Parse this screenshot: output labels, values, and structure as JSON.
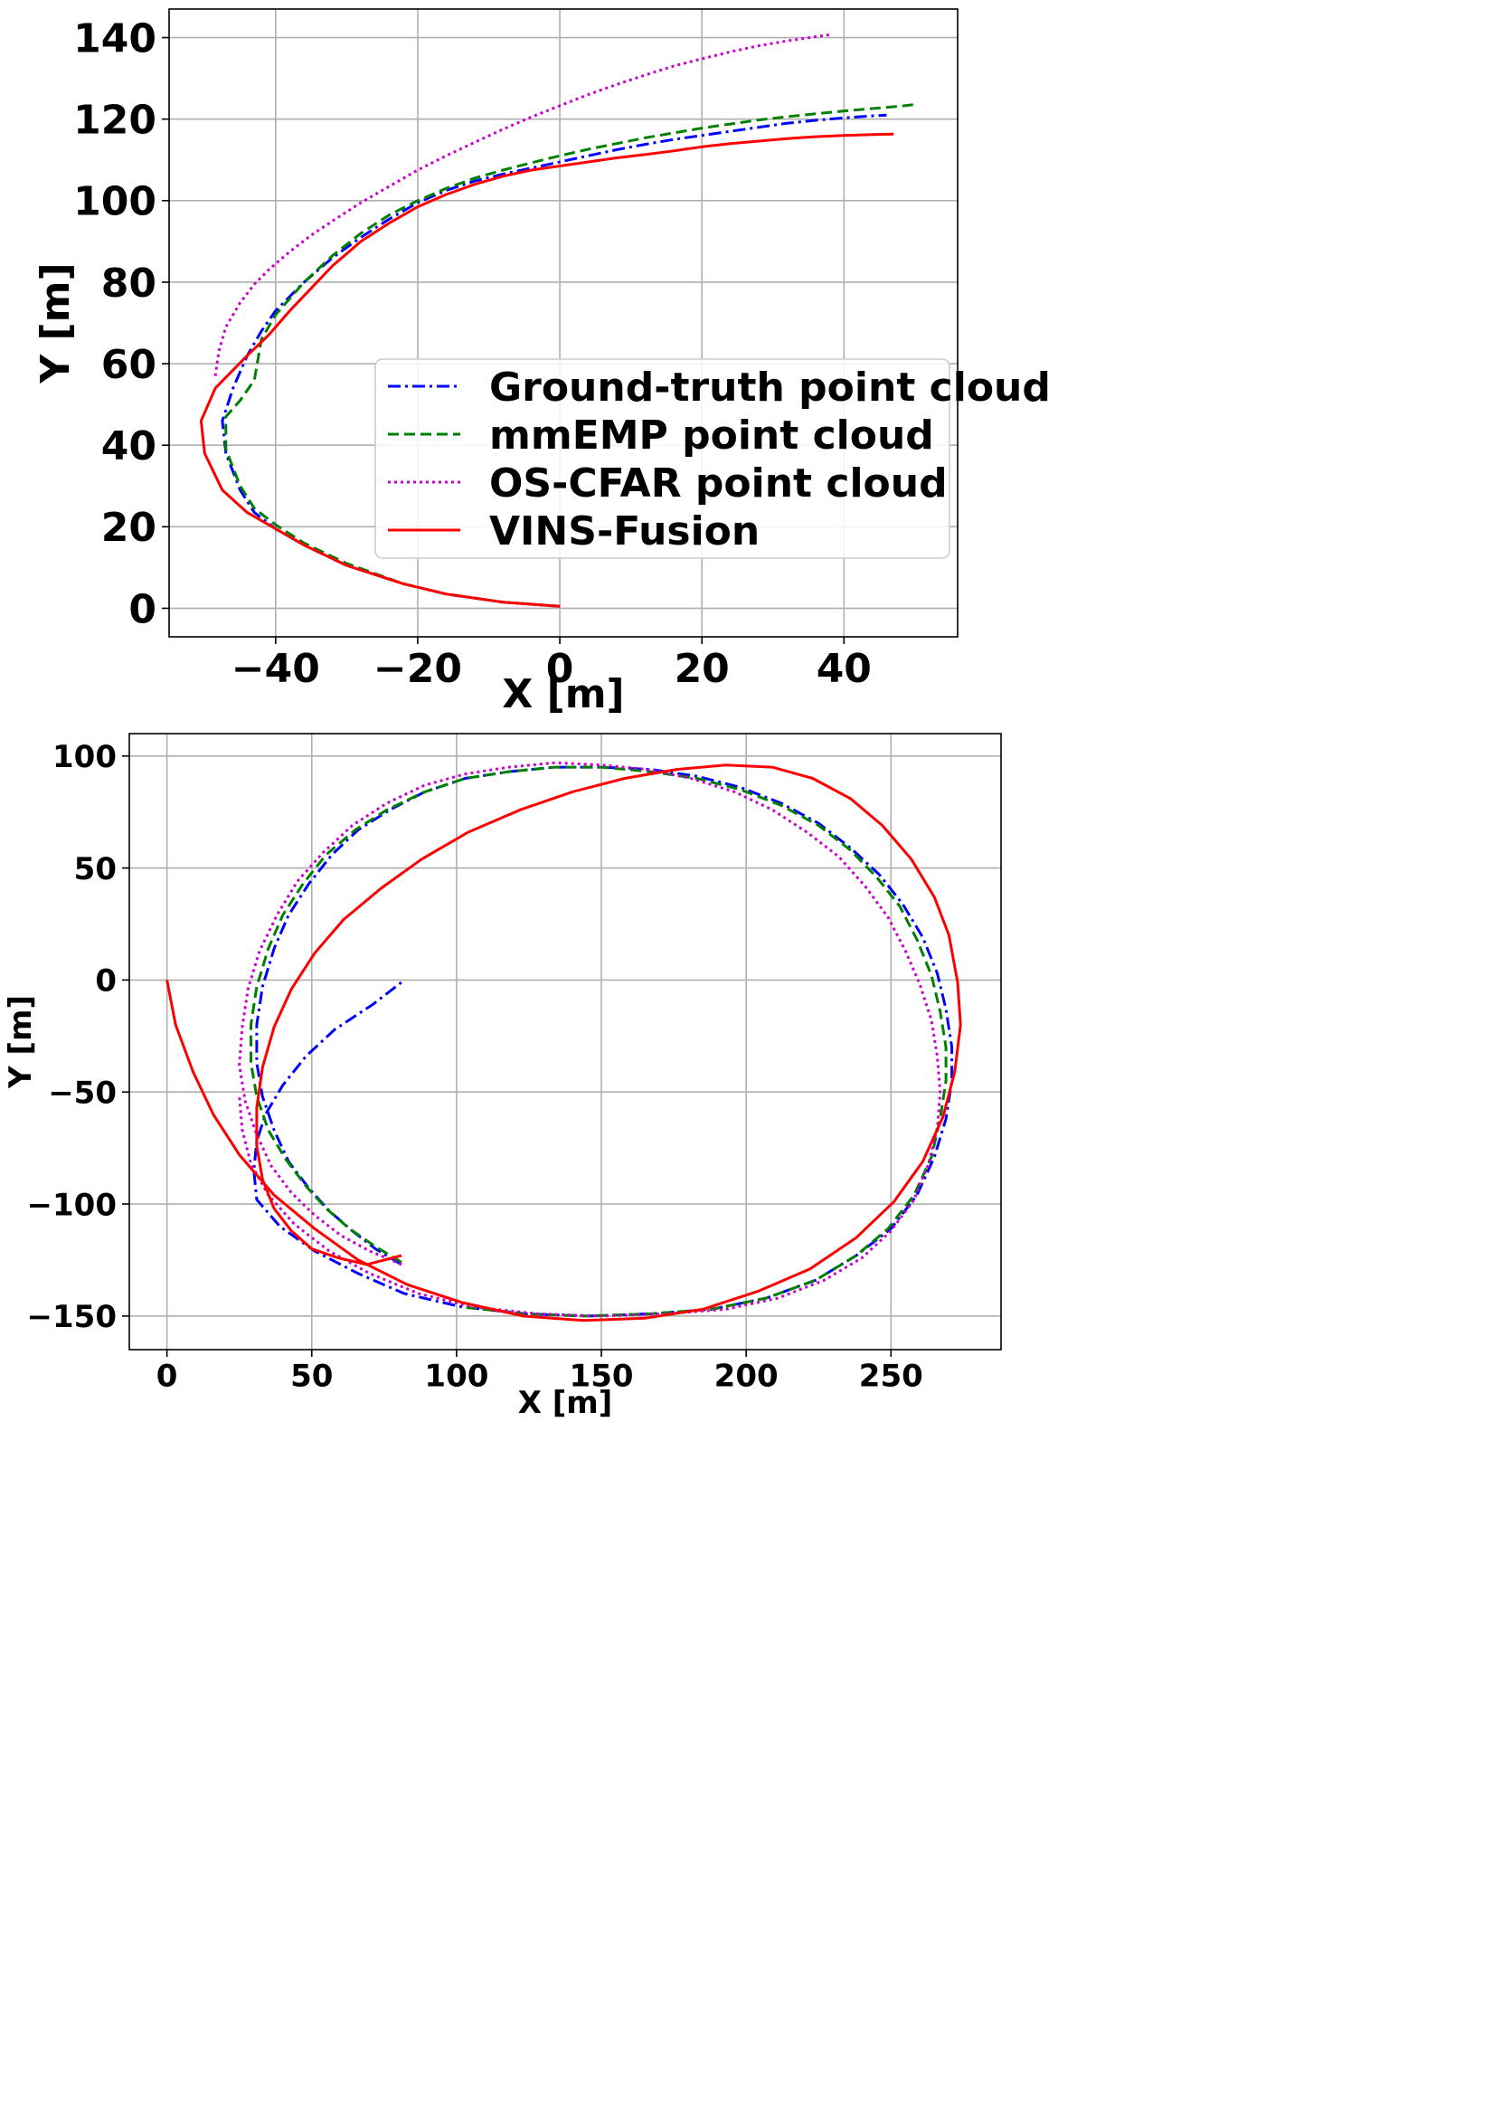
{
  "chart_data": [
    {
      "type": "line",
      "xlabel": "X [m]",
      "ylabel": "Y [m]",
      "xlim": [
        -55,
        56
      ],
      "ylim": [
        -7,
        147
      ],
      "xticks": [
        -40,
        -20,
        0,
        20,
        40
      ],
      "yticks": [
        0,
        20,
        40,
        60,
        80,
        100,
        120,
        140
      ],
      "xtick_labels": [
        "−40",
        "−20",
        "0",
        "20",
        "40"
      ],
      "ytick_labels": [
        "0",
        "20",
        "40",
        "60",
        "80",
        "100",
        "120",
        "140"
      ],
      "grid": true,
      "legend_position": "lower-right",
      "series": [
        {
          "name": "Ground-truth point cloud",
          "color": "#0000ff",
          "style": "dashdot",
          "x": [
            0,
            -8,
            -16,
            -22,
            -30,
            -36,
            -40,
            -43,
            -45,
            -47,
            -47.5,
            -46,
            -44,
            -42,
            -40,
            -36,
            -32,
            -28,
            -24,
            -20,
            -16,
            -12,
            -8,
            -4,
            0,
            4,
            8,
            12,
            16,
            20,
            24,
            28,
            32,
            36,
            40,
            44,
            46
          ],
          "y": [
            0.5,
            1.5,
            3.5,
            6,
            10.5,
            15.5,
            19.5,
            23.5,
            29,
            38,
            46,
            54,
            62,
            68,
            73,
            80,
            86,
            91,
            95.5,
            99.5,
            102.5,
            104.8,
            106.5,
            108,
            109.5,
            111,
            112.5,
            113.8,
            115,
            116,
            117,
            118,
            119,
            119.7,
            120.3,
            120.8,
            121
          ]
        },
        {
          "name": "mmEMP point cloud",
          "color": "#008000",
          "style": "dashed",
          "x": [
            0,
            -8,
            -16,
            -22,
            -30,
            -36,
            -40,
            -43,
            -45,
            -47,
            -47,
            -45,
            -43,
            -42,
            -40,
            -36,
            -32,
            -28,
            -24,
            -20,
            -16,
            -12,
            -8,
            -4,
            0,
            4,
            8,
            12,
            16,
            20,
            24,
            28,
            32,
            36,
            40,
            44,
            48,
            50
          ],
          "y": [
            0.5,
            1.5,
            3.5,
            6,
            11,
            16,
            20.5,
            24.5,
            30,
            39,
            47,
            51,
            56,
            66,
            72,
            80,
            86.5,
            92,
            96.5,
            100,
            103,
            105.5,
            107.5,
            109.3,
            111,
            112.6,
            114,
            115.4,
            116.6,
            117.8,
            118.8,
            119.8,
            120.6,
            121.3,
            122,
            122.6,
            123.2,
            123.6
          ]
        },
        {
          "name": "OS-CFAR point cloud",
          "color": "#cc00cc",
          "style": "dotted",
          "x": [
            -48.5,
            -48,
            -47,
            -45,
            -43,
            -41,
            -38,
            -35,
            -32,
            -28,
            -24,
            -20,
            -16,
            -12,
            -8,
            -4,
            0,
            4,
            8,
            12,
            16,
            20,
            24,
            28,
            32,
            36,
            38
          ],
          "y": [
            57,
            63,
            69,
            75,
            79.5,
            83,
            87.5,
            91.5,
            95,
            99.5,
            103.5,
            107.5,
            111,
            114.3,
            117.5,
            120.5,
            123.3,
            126,
            128.5,
            130.8,
            133,
            134.8,
            136.5,
            138,
            139.2,
            140.2,
            140.7
          ]
        },
        {
          "name": "VINS-Fusion",
          "color": "#ff0000",
          "style": "solid",
          "x": [
            0,
            -8,
            -16,
            -22,
            -30,
            -36,
            -40,
            -44,
            -47.5,
            -50,
            -50.5,
            -48.5,
            -44,
            -41,
            -38,
            -35,
            -32,
            -28,
            -24,
            -20,
            -16,
            -12,
            -8,
            -4,
            0,
            4,
            8,
            12,
            16,
            20,
            24,
            28,
            32,
            36,
            40,
            44,
            47
          ],
          "y": [
            0.5,
            1.5,
            3.5,
            6,
            10.5,
            15.5,
            19.5,
            23.5,
            29,
            38,
            46,
            54,
            62,
            67,
            73,
            78.5,
            84,
            90,
            94.5,
            98.5,
            101.5,
            104,
            106,
            107.5,
            108.5,
            109.5,
            110.5,
            111.3,
            112.2,
            113.2,
            114,
            114.6,
            115.2,
            115.7,
            116,
            116.2,
            116.3
          ]
        }
      ]
    },
    {
      "type": "line",
      "xlabel": "X [m]",
      "ylabel": "Y [m]",
      "xlim": [
        -13,
        288
      ],
      "ylim": [
        -165,
        110
      ],
      "xticks": [
        0,
        50,
        100,
        150,
        200,
        250
      ],
      "yticks": [
        -150,
        -100,
        -50,
        0,
        50,
        100
      ],
      "xtick_labels": [
        "0",
        "50",
        "100",
        "150",
        "200",
        "250"
      ],
      "ytick_labels": [
        "−150",
        "−100",
        "−50",
        "0",
        "50",
        "100"
      ],
      "grid": true,
      "series": [
        {
          "name": "Ground-truth point cloud",
          "color": "#0000ff",
          "style": "dashdot",
          "x": [
            81,
            72,
            64,
            56,
            49,
            42,
            37,
            33,
            31,
            31,
            33,
            37,
            42,
            49,
            57,
            66,
            77,
            89,
            103,
            118,
            134,
            150,
            167,
            183,
            198,
            212,
            225,
            236,
            246,
            254,
            261,
            266,
            269,
            271,
            271,
            269,
            265,
            259,
            250,
            238,
            224,
            207,
            188,
            167,
            145,
            124,
            102,
            82,
            66,
            51,
            39,
            31,
            30,
            31,
            34,
            40,
            48,
            58,
            71,
            81
          ],
          "y": [
            -127,
            -120,
            -112,
            -103,
            -93,
            -81,
            -67,
            -52,
            -37,
            -20,
            -3,
            14,
            29,
            43,
            56,
            67,
            76,
            84,
            90,
            93,
            95,
            95,
            94,
            91,
            86,
            79,
            70,
            59,
            47,
            34,
            19,
            3,
            -13,
            -30,
            -45,
            -62,
            -79,
            -96,
            -111,
            -123,
            -134,
            -142,
            -147,
            -149,
            -150,
            -149,
            -146,
            -140,
            -131,
            -121,
            -110,
            -98,
            -85,
            -72,
            -60,
            -47,
            -34,
            -22,
            -11,
            -1
          ]
        },
        {
          "name": "mmEMP point cloud",
          "color": "#008000",
          "style": "dashed",
          "x": [
            81,
            72,
            63,
            55,
            48,
            41,
            35,
            31,
            29,
            29,
            31,
            35,
            40,
            47,
            55,
            65,
            76,
            89,
            103,
            118,
            134,
            150,
            167,
            183,
            198,
            212,
            225,
            236,
            245,
            253,
            259,
            264,
            267,
            269,
            269,
            267,
            264,
            258,
            249,
            238,
            224,
            207,
            188,
            167,
            145,
            124,
            102
          ],
          "y": [
            -126,
            -119,
            -111,
            -102,
            -92,
            -80,
            -67,
            -52,
            -37,
            -20,
            -3,
            14,
            29,
            43,
            56,
            67,
            76,
            84,
            90,
            93,
            95,
            95,
            93,
            90,
            85,
            78,
            69,
            58,
            46,
            33,
            18,
            2,
            -14,
            -30,
            -45,
            -62,
            -79,
            -96,
            -111,
            -123,
            -134,
            -142,
            -147,
            -149,
            -150,
            -149,
            -146
          ]
        },
        {
          "name": "OS-CFAR point cloud",
          "color": "#cc00cc",
          "style": "dotted",
          "x": [
            81,
            70,
            60,
            51,
            43,
            36,
            31,
            27,
            25,
            26,
            28,
            32,
            38,
            45,
            54,
            64,
            76,
            89,
            103,
            118,
            134,
            150,
            166,
            181,
            196,
            209,
            221,
            232,
            241,
            249,
            255,
            260,
            264,
            266,
            267,
            266,
            263,
            258,
            250,
            240,
            227,
            211,
            193,
            172,
            150,
            128,
            106,
            87,
            70,
            56,
            44,
            35,
            29,
            26,
            25
          ],
          "y": [
            -127,
            -121,
            -114,
            -105,
            -95,
            -83,
            -69,
            -54,
            -38,
            -21,
            -4,
            13,
            29,
            44,
            57,
            69,
            79,
            87,
            92,
            95,
            97,
            96,
            94,
            90,
            84,
            76,
            66,
            55,
            42,
            28,
            13,
            -2,
            -18,
            -34,
            -50,
            -66,
            -82,
            -98,
            -112,
            -124,
            -134,
            -142,
            -147,
            -149,
            -150,
            -149,
            -146,
            -140,
            -131,
            -121,
            -109,
            -96,
            -82,
            -67,
            -52
          ]
        },
        {
          "name": "VINS-Fusion",
          "color": "#ff0000",
          "style": "solid",
          "x": [
            0,
            3,
            9,
            16,
            25,
            37,
            51,
            66,
            83,
            102,
            123,
            144,
            165,
            185,
            204,
            222,
            238,
            251,
            261,
            268,
            272,
            274,
            273,
            270,
            265,
            257,
            247,
            236,
            223,
            209,
            193,
            176,
            158,
            140,
            122,
            104,
            88,
            74,
            61,
            51,
            43,
            37,
            33,
            31,
            31,
            33,
            37,
            43,
            50,
            59,
            69,
            81
          ],
          "y": [
            0,
            -20,
            -41,
            -60,
            -78,
            -96,
            -111,
            -125,
            -136,
            -144,
            -150,
            -152,
            -151,
            -147,
            -139,
            -129,
            -115,
            -99,
            -81,
            -61,
            -41,
            -20,
            -1,
            20,
            37,
            54,
            69,
            81,
            90,
            95,
            96,
            94,
            90,
            84,
            76,
            66,
            54,
            41,
            27,
            12,
            -4,
            -21,
            -39,
            -57,
            -74,
            -89,
            -102,
            -112,
            -120,
            -124,
            -127,
            -123
          ]
        }
      ]
    }
  ]
}
